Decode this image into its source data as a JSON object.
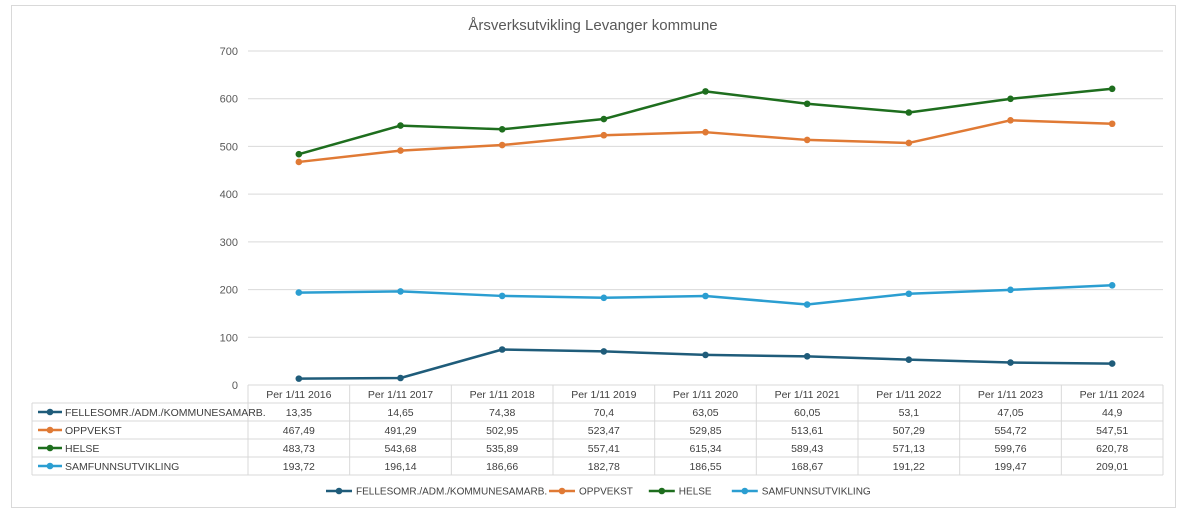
{
  "chart_data": {
    "type": "line",
    "title": "Årsverksutvikling Levanger kommune",
    "categories": [
      "Per 1/11 2016",
      "Per 1/11 2017",
      "Per 1/11 2018",
      "Per 1/11 2019",
      "Per 1/11 2020",
      "Per 1/11 2021",
      "Per 1/11 2022",
      "Per 1/11 2023",
      "Per 1/11 2024"
    ],
    "ylim": [
      0,
      700
    ],
    "yticks": [
      0,
      100,
      200,
      300,
      400,
      500,
      600,
      700
    ],
    "grid": true,
    "legend_position": "bottom",
    "has_data_table": true,
    "series": [
      {
        "name": "FELLESOMR./ADM./KOMMUNESAMARB.",
        "color": "#1f5c7a",
        "values": [
          13.35,
          14.65,
          74.38,
          70.4,
          63.05,
          60.05,
          53.1,
          47.05,
          44.9
        ],
        "labels": [
          "13,35",
          "14,65",
          "74,38",
          "70,4",
          "63,05",
          "60,05",
          "53,1",
          "47,05",
          "44,9"
        ]
      },
      {
        "name": "OPPVEKST",
        "color": "#e07a35",
        "values": [
          467.49,
          491.29,
          502.95,
          523.47,
          529.85,
          513.61,
          507.29,
          554.72,
          547.51
        ],
        "labels": [
          "467,49",
          "491,29",
          "502,95",
          "523,47",
          "529,85",
          "513,61",
          "507,29",
          "554,72",
          "547,51"
        ]
      },
      {
        "name": "HELSE",
        "color": "#1e6e1e",
        "values": [
          483.73,
          543.68,
          535.89,
          557.41,
          615.34,
          589.43,
          571.13,
          599.76,
          620.78
        ],
        "labels": [
          "483,73",
          "543,68",
          "535,89",
          "557,41",
          "615,34",
          "589,43",
          "571,13",
          "599,76",
          "620,78"
        ]
      },
      {
        "name": "SAMFUNNSUTVIKLING",
        "color": "#2b9ed1",
        "values": [
          193.72,
          196.14,
          186.66,
          182.78,
          186.55,
          168.67,
          191.22,
          199.47,
          209.01
        ],
        "labels": [
          "193,72",
          "196,14",
          "186,66",
          "182,78",
          "186,55",
          "168,67",
          "191,22",
          "199,47",
          "209,01"
        ]
      }
    ]
  }
}
